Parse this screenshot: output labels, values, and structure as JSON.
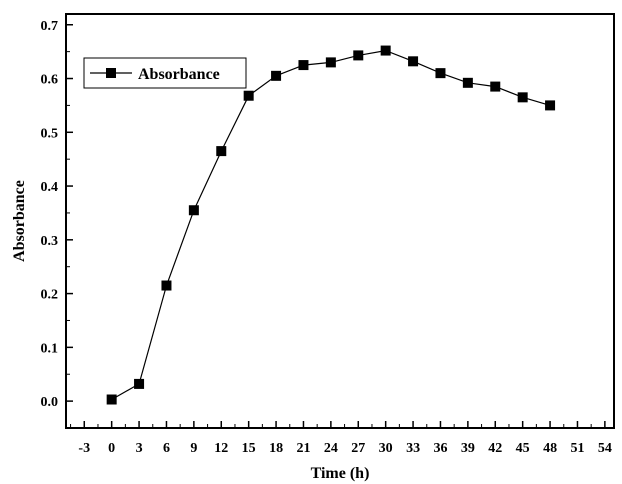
{
  "chart_data": {
    "type": "line",
    "xlabel": "Time (h)",
    "ylabel": "Absorbance",
    "xlim": [
      -5,
      55
    ],
    "ylim": [
      -0.05,
      0.72
    ],
    "x_ticks": [
      "-3",
      "0",
      "3",
      "6",
      "9",
      "12",
      "15",
      "18",
      "21",
      "24",
      "27",
      "30",
      "33",
      "36",
      "39",
      "42",
      "45",
      "48",
      "51",
      "54"
    ],
    "x_tick_values": [
      -3,
      0,
      3,
      6,
      9,
      12,
      15,
      18,
      21,
      24,
      27,
      30,
      33,
      36,
      39,
      42,
      45,
      48,
      51,
      54
    ],
    "y_ticks": [
      "0.0",
      "0.1",
      "0.2",
      "0.3",
      "0.4",
      "0.5",
      "0.6",
      "0.7"
    ],
    "y_tick_values": [
      0,
      0.1,
      0.2,
      0.3,
      0.4,
      0.5,
      0.6,
      0.7
    ],
    "grid": false,
    "legend": "top-left",
    "series": [
      {
        "name": "Absorbance",
        "color": "#000000",
        "marker": "square",
        "x": [
          0,
          3,
          6,
          9,
          12,
          15,
          18,
          21,
          24,
          27,
          30,
          33,
          36,
          39,
          42,
          45,
          48
        ],
        "y": [
          0.003,
          0.032,
          0.215,
          0.355,
          0.465,
          0.568,
          0.605,
          0.625,
          0.63,
          0.643,
          0.652,
          0.632,
          0.61,
          0.592,
          0.585,
          0.565,
          0.55
        ]
      }
    ]
  }
}
